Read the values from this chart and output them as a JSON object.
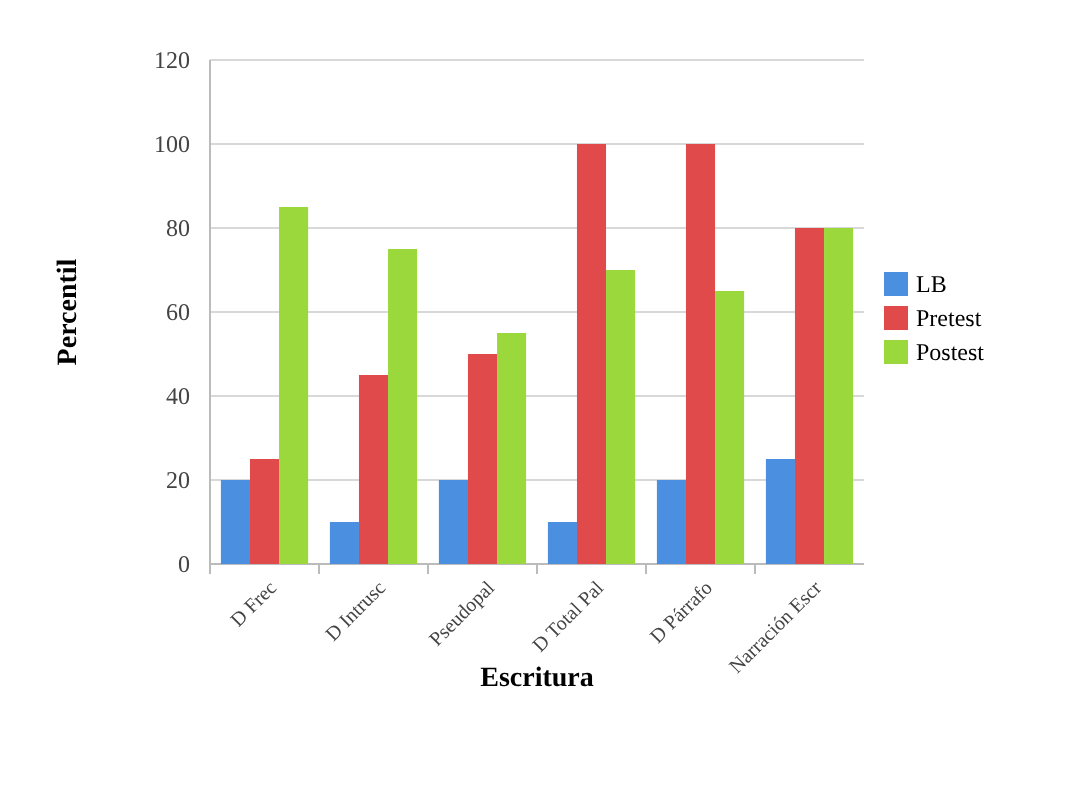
{
  "chart_data": {
    "type": "bar",
    "xlabel": "Escritura",
    "ylabel": "Percentil",
    "categories": [
      "D Frec",
      "D Intrusc",
      "Pseudopal",
      "D Total Pal",
      "D Párrafo",
      "Narración Escr"
    ],
    "series": [
      {
        "name": "LB",
        "color": "#4a8fe0",
        "values": [
          20,
          10,
          20,
          10,
          20,
          25
        ]
      },
      {
        "name": "Pretest",
        "color": "#e04a4a",
        "values": [
          25,
          45,
          50,
          100,
          100,
          80
        ]
      },
      {
        "name": "Postest",
        "color": "#9ad83c",
        "values": [
          85,
          75,
          55,
          70,
          65,
          80
        ]
      }
    ],
    "ylim": [
      0,
      120
    ],
    "yticks": [
      0,
      20,
      40,
      60,
      80,
      100,
      120
    ],
    "grid": "y",
    "legend": "right"
  }
}
